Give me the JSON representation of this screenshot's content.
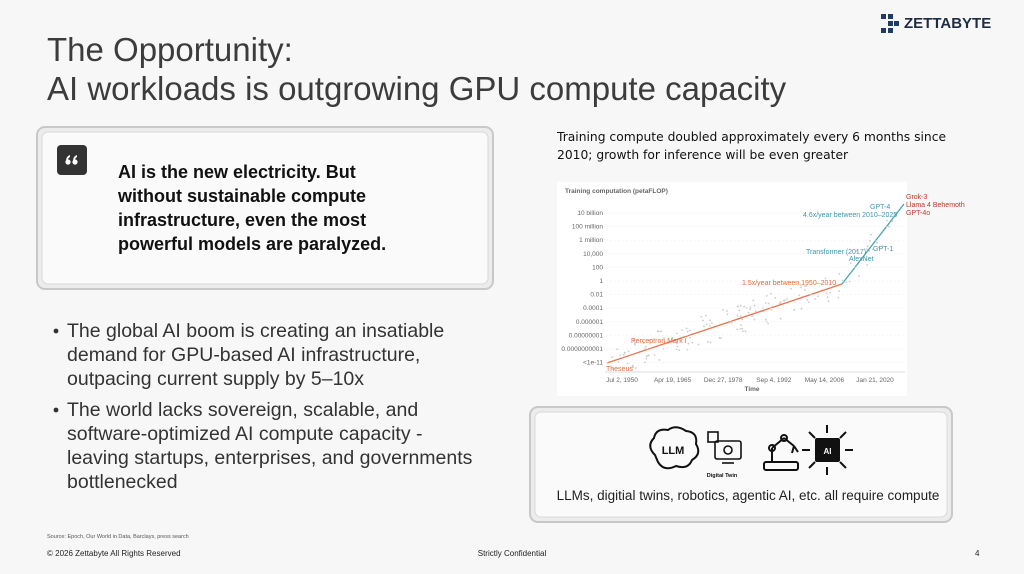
{
  "header": {
    "title_lines": [
      "The Opportunity:",
      "AI workloads is outgrowing GPU compute capacity"
    ],
    "logo": "ZETTABYTE"
  },
  "quote": {
    "lines": [
      "AI is the new electricity. But",
      "without sustainable compute",
      "infrastructure, even the most",
      "powerful models are paralyzed."
    ]
  },
  "bullets": [
    [
      "The global AI boom is creating an insatiable",
      "demand for GPU-based AI infrastructure,",
      "outpacing current supply by 5–10x"
    ],
    [
      "The world lacks sovereign, scalable, and",
      "software-optimized AI compute capacity -",
      "leaving startups, enterprises, and governments",
      "bottlenecked"
    ]
  ],
  "chart_panel": {
    "caption_lines": [
      "Training compute doubled approximately every 6 months since",
      "2010; growth for inference will be even greater"
    ],
    "chart": {
      "axis_title": "Training computation (petaFLOP)",
      "yticks": [
        "10 billion",
        "100 million",
        "1 million",
        "10,000",
        "100",
        "1",
        "0.01",
        "0.0001",
        "0.000001",
        "0.00000001",
        "0.0000000001",
        "<1e-11"
      ],
      "xticks": [
        "Jul 2, 1950",
        "Apr 19, 1965",
        "Dec 27, 1978",
        "Sep 4, 1992",
        "May 14, 2006",
        "Jan 21, 2020"
      ],
      "x_title": "Time",
      "annotations": [
        "Grok-3",
        "Llama 4 Behemoth",
        "GPT-4o",
        "GPT-4",
        "4.6x/year between 2010–2025",
        "Transformer (2017)",
        "GPT-1",
        "AlexNet",
        "1.5x/year between 1950–2010",
        "Perceptron Mark I",
        "Theseus"
      ]
    }
  },
  "compute_panel": {
    "icon_labels": [
      "LLM",
      "Digital Twin",
      "AI"
    ],
    "caption": "LLMs, digitial twins, robotics, agentic AI, etc. all require compute"
  },
  "footer": {
    "source": "Source: Epoch, Our World in Data, Barclays, press search",
    "copyright": "© 2026 Zettabyte All Rights Reserved",
    "confidential": "Strictly Confidential",
    "page": 4
  }
}
